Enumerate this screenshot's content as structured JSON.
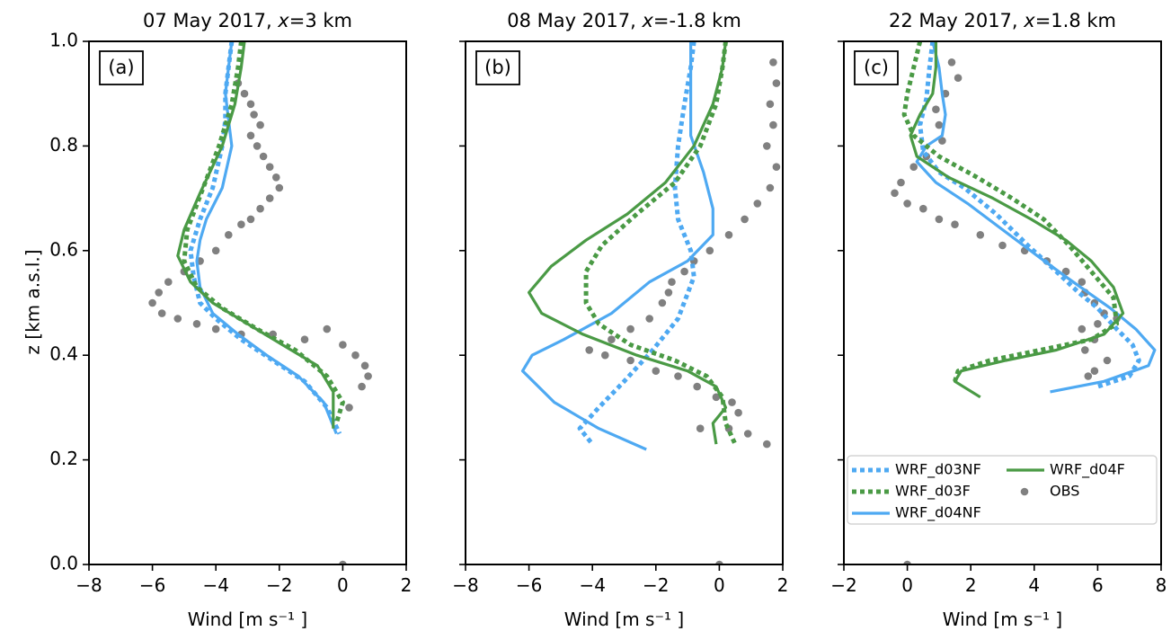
{
  "figure": {
    "ylabel": "z [km a.s.l.]",
    "colors": {
      "blue": "#4ea9f2",
      "green": "#4a9a45",
      "obs": "#808080",
      "frame": "#000000"
    }
  },
  "legend": {
    "items": [
      {
        "key": "d03NF",
        "label": "WRF_d03NF",
        "color": "#4ea9f2",
        "style": "dotted"
      },
      {
        "key": "d04F",
        "label": "WRF_d04F",
        "color": "#4a9a45",
        "style": "solid"
      },
      {
        "key": "d03F",
        "label": "WRF_d03F",
        "color": "#4a9a45",
        "style": "dotted"
      },
      {
        "key": "obs",
        "label": "OBS",
        "color": "#808080",
        "style": "marker"
      },
      {
        "key": "d04NF",
        "label": "WRF_d04NF",
        "color": "#4ea9f2",
        "style": "solid"
      }
    ]
  },
  "chart_data": [
    {
      "type": "line",
      "tag": "(a)",
      "title": "07 May 2017, x=3 km",
      "title_parts": [
        "07 May 2017, ",
        "x",
        "=3 km"
      ],
      "xlabel": "Wind [m s⁻¹ ]",
      "xlim": [
        -8,
        2
      ],
      "ylim": [
        0,
        1.0
      ],
      "xticks": [
        -8,
        -6,
        -4,
        -2,
        0,
        2
      ],
      "yticks": [
        0.0,
        0.2,
        0.4,
        0.6,
        0.8,
        1.0
      ],
      "ytick_labels": [
        "0.0",
        "0.2",
        "0.4",
        "0.6",
        "0.8",
        "1.0"
      ],
      "series": [
        {
          "key": "d03NF",
          "x": [
            -3.5,
            -3.6,
            -3.7,
            -3.7,
            -3.8,
            -4.1,
            -4.5,
            -4.8,
            -4.7,
            -4.5,
            -4.0,
            -3.2,
            -2.2,
            -1.2,
            -0.5,
            -0.1
          ],
          "y": [
            1.0,
            0.95,
            0.9,
            0.85,
            0.8,
            0.72,
            0.66,
            0.6,
            0.55,
            0.5,
            0.47,
            0.43,
            0.39,
            0.35,
            0.3,
            0.25
          ]
        },
        {
          "key": "d04NF",
          "x": [
            -3.5,
            -3.6,
            -3.7,
            -3.6,
            -3.5,
            -3.8,
            -4.3,
            -4.5,
            -4.6,
            -4.5,
            -4.1,
            -3.3,
            -2.4,
            -1.4,
            -0.6,
            -0.2
          ],
          "y": [
            1.0,
            0.95,
            0.9,
            0.85,
            0.8,
            0.72,
            0.66,
            0.62,
            0.58,
            0.53,
            0.48,
            0.44,
            0.4,
            0.36,
            0.31,
            0.25
          ]
        },
        {
          "key": "d03F",
          "x": [
            -3.2,
            -3.3,
            -3.5,
            -3.9,
            -4.4,
            -4.9,
            -5.0,
            -4.6,
            -3.8,
            -2.7,
            -1.5,
            -0.5,
            0.0,
            -0.2
          ],
          "y": [
            1.0,
            0.95,
            0.88,
            0.8,
            0.72,
            0.64,
            0.58,
            0.53,
            0.49,
            0.45,
            0.41,
            0.36,
            0.31,
            0.27
          ]
        },
        {
          "key": "d04F",
          "x": [
            -3.1,
            -3.2,
            -3.4,
            -3.8,
            -4.5,
            -5.0,
            -5.2,
            -4.8,
            -4.1,
            -3.0,
            -1.9,
            -0.8,
            -0.3,
            -0.3
          ],
          "y": [
            1.0,
            0.95,
            0.88,
            0.8,
            0.71,
            0.64,
            0.59,
            0.54,
            0.5,
            0.46,
            0.42,
            0.38,
            0.33,
            0.26
          ]
        }
      ],
      "obs": {
        "x": [
          -3.3,
          -3.1,
          -2.9,
          -2.8,
          -2.6,
          -2.9,
          -2.7,
          -2.5,
          -2.3,
          -2.1,
          -2.0,
          -2.3,
          -2.6,
          -2.9,
          -3.2,
          -3.6,
          -4.0,
          -4.5,
          -5.0,
          -5.5,
          -5.8,
          -6.0,
          -5.7,
          -5.2,
          -4.6,
          -4.0,
          -3.2,
          -2.2,
          -1.2,
          -0.5,
          0.0,
          0.4,
          0.7,
          0.8,
          0.6,
          0.2,
          0.0
        ],
        "y": [
          0.92,
          0.9,
          0.88,
          0.86,
          0.84,
          0.82,
          0.8,
          0.78,
          0.76,
          0.74,
          0.72,
          0.7,
          0.68,
          0.66,
          0.65,
          0.63,
          0.6,
          0.58,
          0.56,
          0.54,
          0.52,
          0.5,
          0.48,
          0.47,
          0.46,
          0.45,
          0.44,
          0.44,
          0.43,
          0.45,
          0.42,
          0.4,
          0.38,
          0.36,
          0.34,
          0.3,
          0.0
        ]
      }
    },
    {
      "type": "line",
      "tag": "(b)",
      "title": "08 May 2017, x=-1.8 km",
      "title_parts": [
        "08 May 2017, ",
        "x",
        "=-1.8 km"
      ],
      "xlabel": "Wind [m s⁻¹ ]",
      "xlim": [
        -8,
        2
      ],
      "ylim": [
        0,
        1.0
      ],
      "xticks": [
        -8,
        -6,
        -4,
        -2,
        0,
        2
      ],
      "yticks": [
        0.0,
        0.2,
        0.4,
        0.6,
        0.8,
        1.0
      ],
      "ytick_labels": [
        "",
        "",
        "",
        "",
        "",
        ""
      ],
      "series": [
        {
          "key": "d03NF",
          "x": [
            -0.8,
            -0.9,
            -1.1,
            -1.3,
            -1.4,
            -1.3,
            -0.9,
            -0.8,
            -1.3,
            -2.1,
            -3.0,
            -3.8,
            -4.4,
            -4.0
          ],
          "y": [
            1.0,
            0.95,
            0.88,
            0.8,
            0.72,
            0.66,
            0.6,
            0.55,
            0.47,
            0.41,
            0.35,
            0.3,
            0.26,
            0.23
          ]
        },
        {
          "key": "d04NF",
          "x": [
            -0.9,
            -0.9,
            -0.9,
            -0.5,
            -0.2,
            -0.2,
            -1.0,
            -2.2,
            -3.4,
            -4.9,
            -5.9,
            -6.2,
            -5.2,
            -3.8,
            -2.3
          ],
          "y": [
            1.0,
            0.92,
            0.82,
            0.75,
            0.68,
            0.63,
            0.58,
            0.54,
            0.48,
            0.43,
            0.4,
            0.37,
            0.31,
            0.26,
            0.22
          ]
        },
        {
          "key": "d03F",
          "x": [
            0.2,
            0.1,
            -0.1,
            -0.6,
            -1.4,
            -2.6,
            -3.7,
            -4.2,
            -4.2,
            -3.8,
            -2.8,
            -1.4,
            -0.4,
            0.1,
            0.2,
            0.5
          ],
          "y": [
            1.0,
            0.95,
            0.88,
            0.8,
            0.73,
            0.67,
            0.61,
            0.56,
            0.5,
            0.46,
            0.42,
            0.39,
            0.36,
            0.32,
            0.27,
            0.23
          ]
        },
        {
          "key": "d04F",
          "x": [
            0.2,
            0.1,
            -0.2,
            -0.8,
            -1.7,
            -2.9,
            -4.2,
            -5.3,
            -6.0,
            -5.6,
            -4.3,
            -2.6,
            -1.0,
            -0.1,
            0.2,
            -0.2,
            -0.1
          ],
          "y": [
            1.0,
            0.95,
            0.88,
            0.8,
            0.73,
            0.67,
            0.62,
            0.57,
            0.52,
            0.48,
            0.44,
            0.4,
            0.37,
            0.34,
            0.3,
            0.27,
            0.23
          ]
        }
      ],
      "obs": {
        "x": [
          1.7,
          1.8,
          1.6,
          1.7,
          1.5,
          1.8,
          1.6,
          1.2,
          0.8,
          0.3,
          -0.3,
          -0.8,
          -1.1,
          -1.5,
          -1.6,
          -1.8,
          -2.2,
          -2.8,
          -3.4,
          -4.1,
          -3.6,
          -2.8,
          -2.0,
          -1.3,
          -0.7,
          -0.1,
          0.4,
          0.6,
          0.3,
          0.9,
          1.5,
          -0.6,
          0.0
        ],
        "y": [
          0.96,
          0.92,
          0.88,
          0.84,
          0.8,
          0.76,
          0.72,
          0.69,
          0.66,
          0.63,
          0.6,
          0.58,
          0.56,
          0.54,
          0.52,
          0.5,
          0.47,
          0.45,
          0.43,
          0.41,
          0.4,
          0.39,
          0.37,
          0.36,
          0.34,
          0.32,
          0.31,
          0.29,
          0.26,
          0.25,
          0.23,
          0.26,
          0.0
        ]
      }
    },
    {
      "type": "line",
      "tag": "(c)",
      "title": "22 May 2017, x=1.8 km",
      "title_parts": [
        "22 May 2017, ",
        "x",
        "=1.8 km"
      ],
      "xlabel": "Wind [m s⁻¹ ]",
      "xlim": [
        -2,
        8
      ],
      "ylim": [
        0,
        1.0
      ],
      "xticks": [
        -2,
        0,
        2,
        4,
        6,
        8
      ],
      "yticks": [
        0.0,
        0.2,
        0.4,
        0.6,
        0.8,
        1.0
      ],
      "ytick_labels": [
        "",
        "",
        "",
        "",
        "",
        ""
      ],
      "series": [
        {
          "key": "d03NF",
          "x": [
            0.8,
            0.7,
            0.6,
            0.4,
            0.5,
            1.0,
            1.8,
            2.8,
            3.8,
            4.7,
            5.4,
            6.0,
            6.6,
            7.1,
            7.3,
            7.0,
            6.0
          ],
          "y": [
            1.0,
            0.95,
            0.89,
            0.84,
            0.79,
            0.75,
            0.72,
            0.67,
            0.61,
            0.56,
            0.52,
            0.49,
            0.45,
            0.42,
            0.39,
            0.36,
            0.34
          ]
        },
        {
          "key": "d04NF",
          "x": [
            0.8,
            1.0,
            1.1,
            1.2,
            1.1,
            0.6,
            0.3,
            0.9,
            1.9,
            3.0,
            4.1,
            5.0,
            5.7,
            6.4,
            7.2,
            7.8,
            7.6,
            6.2,
            4.5
          ],
          "y": [
            1.0,
            0.95,
            0.9,
            0.86,
            0.82,
            0.8,
            0.77,
            0.73,
            0.69,
            0.64,
            0.59,
            0.55,
            0.52,
            0.49,
            0.45,
            0.41,
            0.38,
            0.35,
            0.33
          ]
        },
        {
          "key": "d03F",
          "x": [
            0.4,
            0.2,
            0.0,
            -0.1,
            0.2,
            1.0,
            2.2,
            3.3,
            4.3,
            5.1,
            5.8,
            6.5,
            6.6,
            5.8,
            4.2,
            2.6,
            1.6,
            1.5
          ],
          "y": [
            1.0,
            0.95,
            0.9,
            0.86,
            0.82,
            0.78,
            0.74,
            0.7,
            0.66,
            0.61,
            0.56,
            0.51,
            0.46,
            0.43,
            0.41,
            0.39,
            0.37,
            0.35
          ]
        },
        {
          "key": "d04F",
          "x": [
            0.9,
            0.9,
            0.8,
            0.4,
            0.1,
            0.3,
            1.3,
            2.7,
            3.9,
            5.0,
            5.8,
            6.5,
            6.8,
            6.2,
            4.7,
            3.1,
            1.7,
            1.5,
            2.3
          ],
          "y": [
            1.0,
            0.95,
            0.9,
            0.86,
            0.82,
            0.78,
            0.74,
            0.7,
            0.66,
            0.62,
            0.58,
            0.53,
            0.48,
            0.44,
            0.41,
            0.39,
            0.37,
            0.35,
            0.32
          ]
        }
      ],
      "obs": {
        "x": [
          1.4,
          1.6,
          1.2,
          0.9,
          1.0,
          1.1,
          0.6,
          0.2,
          -0.2,
          -0.4,
          0.0,
          0.5,
          1.0,
          1.5,
          2.3,
          3.0,
          3.7,
          4.4,
          5.0,
          5.5,
          5.6,
          5.9,
          6.2,
          6.0,
          5.5,
          5.9,
          5.6,
          6.3,
          5.9,
          5.7,
          6.6,
          0.0
        ],
        "y": [
          0.96,
          0.93,
          0.9,
          0.87,
          0.84,
          0.81,
          0.78,
          0.76,
          0.73,
          0.71,
          0.69,
          0.68,
          0.66,
          0.65,
          0.63,
          0.61,
          0.6,
          0.58,
          0.56,
          0.54,
          0.52,
          0.5,
          0.48,
          0.46,
          0.45,
          0.43,
          0.41,
          0.39,
          0.37,
          0.36,
          0.47,
          0.0
        ]
      }
    }
  ]
}
